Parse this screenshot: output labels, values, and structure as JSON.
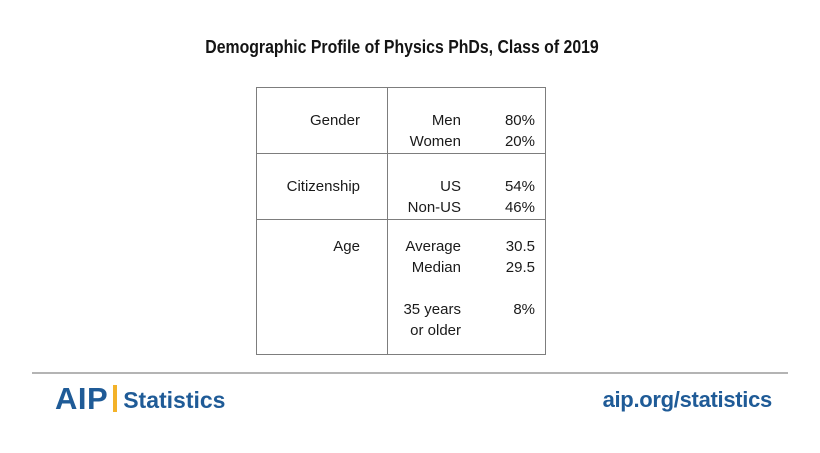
{
  "title": "Demographic Profile of Physics PhDs, Class of 2019",
  "chart_data": {
    "type": "table",
    "title": "Demographic Profile of Physics PhDs, Class of 2019",
    "groups": [
      {
        "category": "Gender",
        "entries": [
          {
            "label": "Men",
            "value": "80%"
          },
          {
            "label": "Women",
            "value": "20%"
          }
        ]
      },
      {
        "category": "Citizenship",
        "entries": [
          {
            "label": "US",
            "value": "54%"
          },
          {
            "label": "Non-US",
            "value": "46%"
          }
        ]
      },
      {
        "category": "Age",
        "entries": [
          {
            "label": "Average",
            "value": "30.5"
          },
          {
            "label": "Median",
            "value": "29.5"
          },
          {
            "label": "35 years or older",
            "value": "8%"
          }
        ]
      }
    ]
  },
  "display_table": {
    "sections": [
      {
        "category": "Gender",
        "rows": [
          {
            "label": "Men",
            "value": "80%"
          },
          {
            "label": "Women",
            "value": "20%"
          }
        ]
      },
      {
        "category": "Citizenship",
        "rows": [
          {
            "label": "US",
            "value": "54%"
          },
          {
            "label": "Non-US",
            "value": "46%"
          }
        ]
      },
      {
        "category": "Age",
        "rows": [
          {
            "label": "Average",
            "value": "30.5"
          },
          {
            "label": "Median",
            "value": "29.5"
          },
          {
            "label": "",
            "value": ""
          },
          {
            "label": "35 years",
            "value": "8%"
          },
          {
            "label": "or older",
            "value": ""
          }
        ]
      }
    ]
  },
  "footer": {
    "logo_text": "AIP",
    "logo_suffix": "Statistics",
    "link": "aip.org/statistics"
  },
  "colors": {
    "brand_blue": "#1f5b97",
    "brand_gold": "#f3b229",
    "table_border": "#7d7d7d",
    "footer_rule": "#b4b4b4"
  }
}
